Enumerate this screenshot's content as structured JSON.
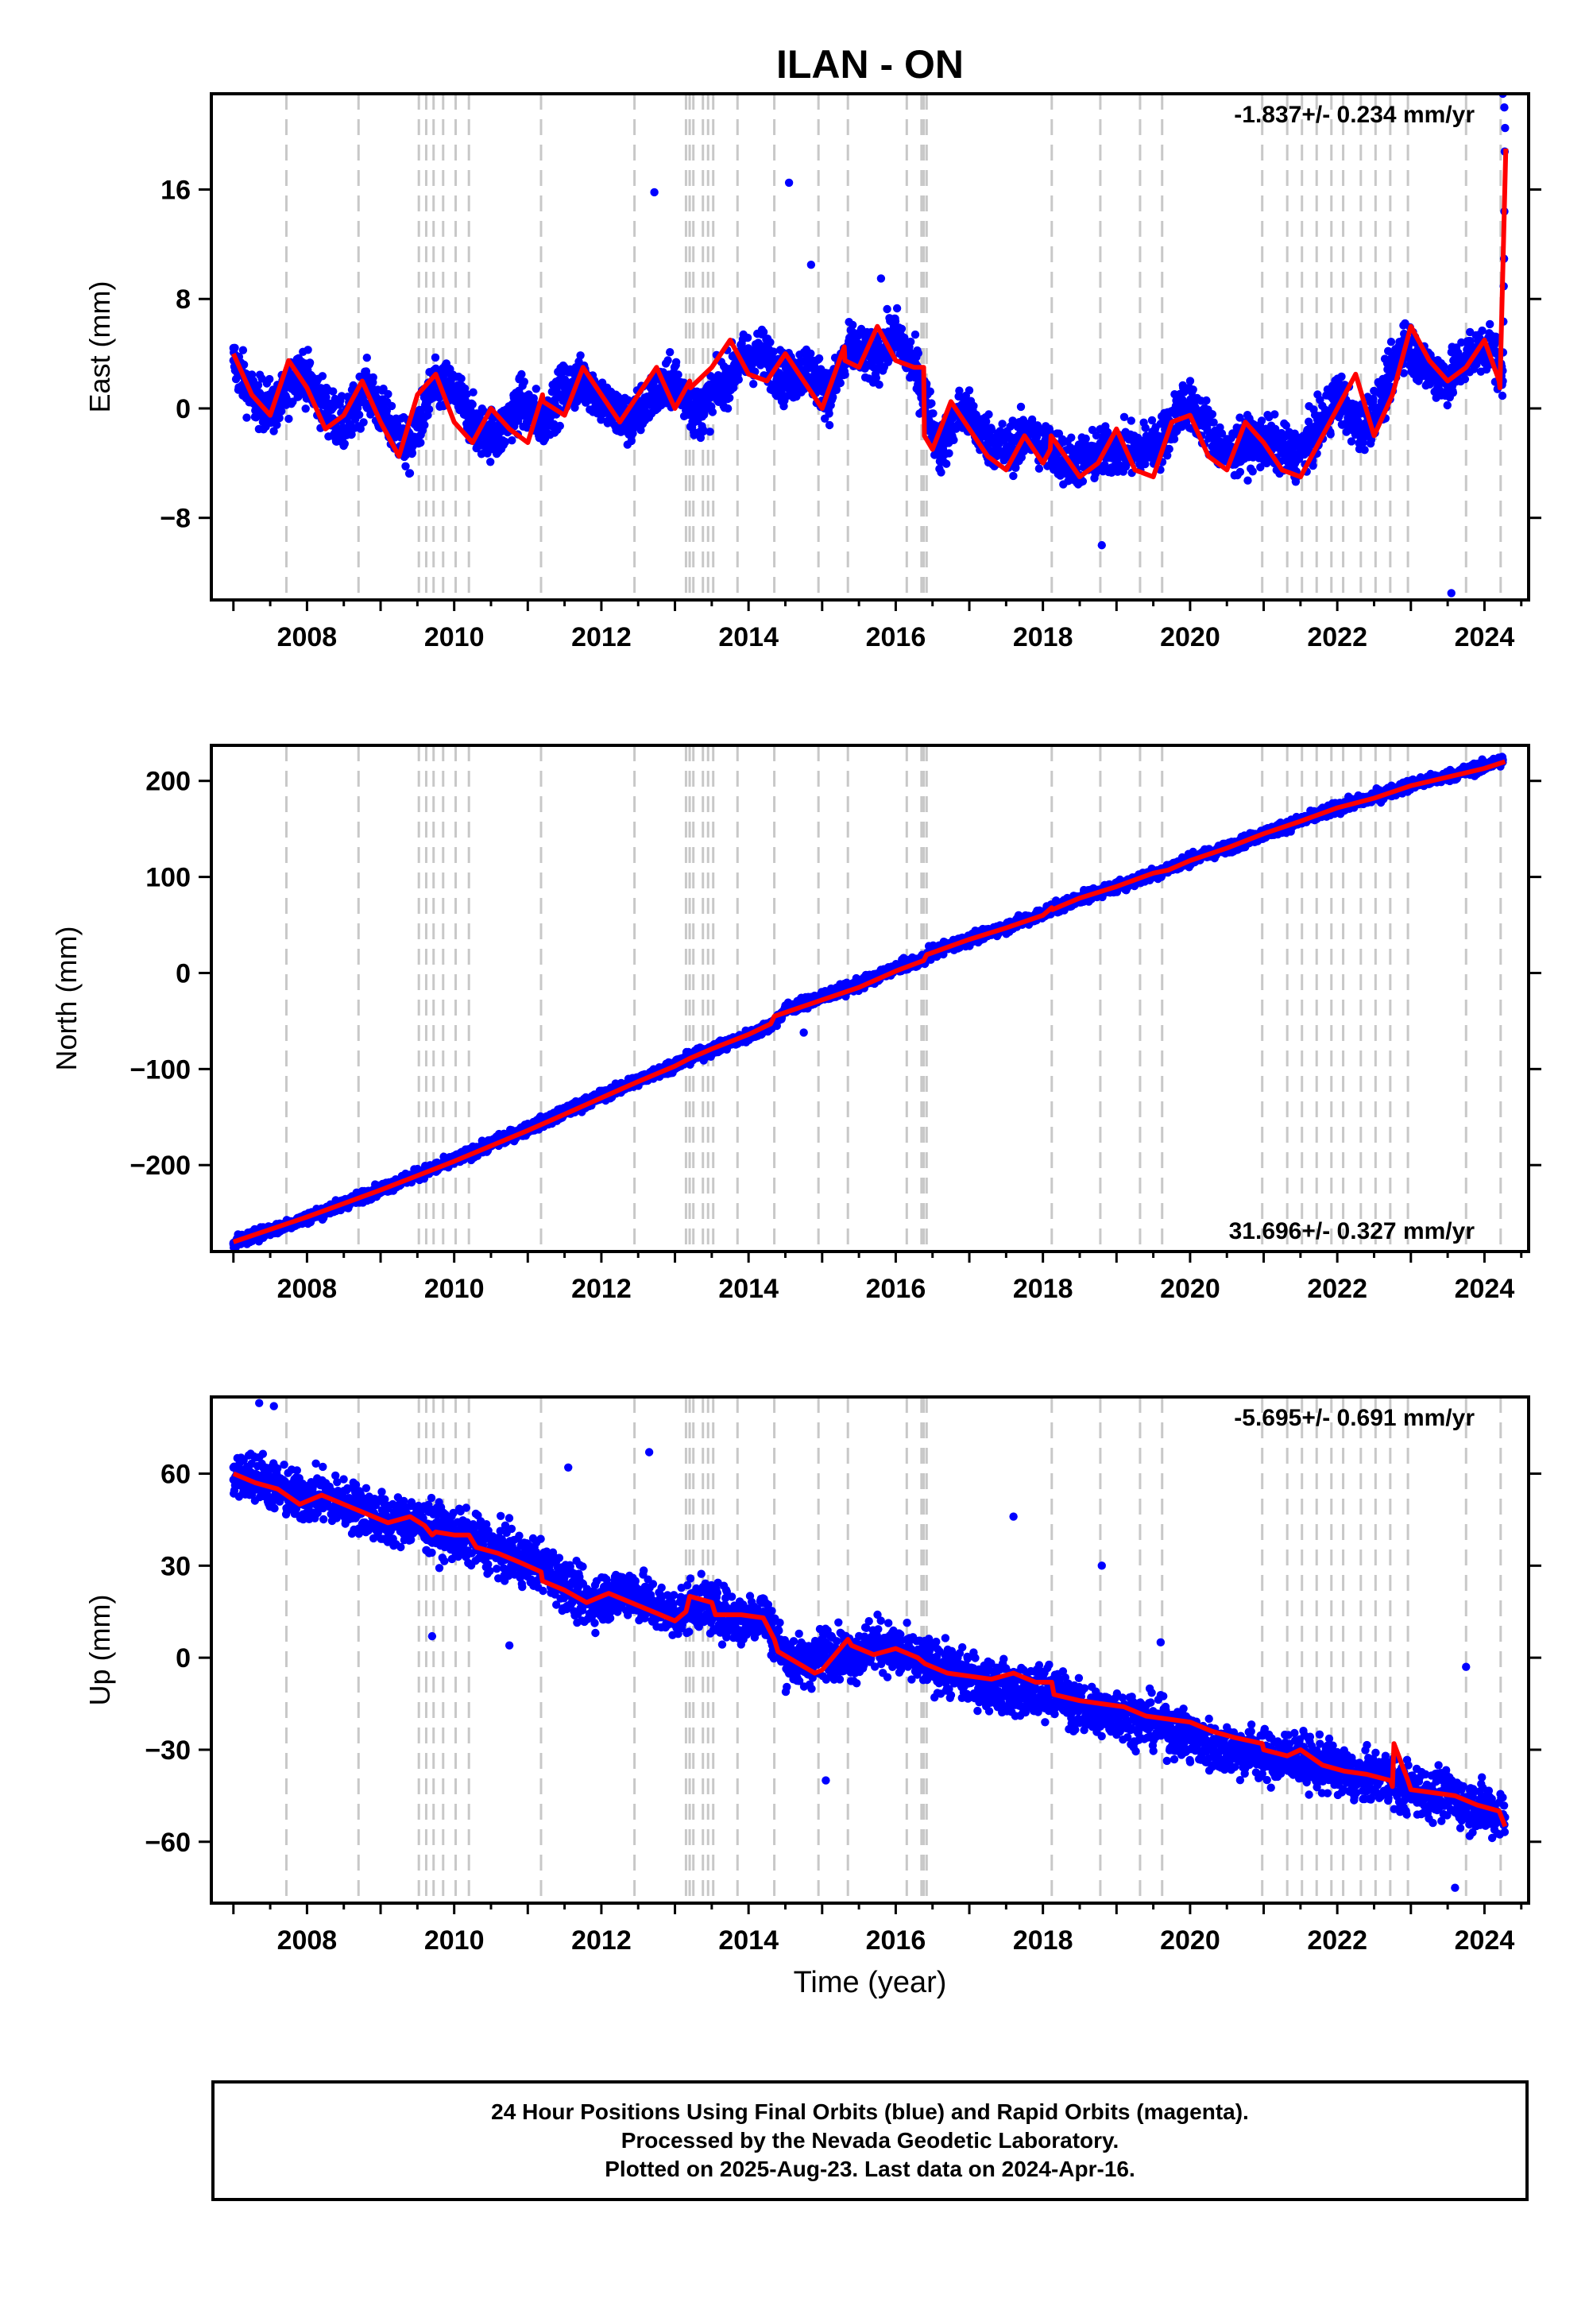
{
  "colors": {
    "points": "#0000ff",
    "trend": "#ff0000",
    "offsets": "#c8c8c8",
    "frame": "#000000",
    "background": "#ffffff"
  },
  "footer": {
    "line1": "24 Hour Positions Using Final Orbits (blue) and Rapid Orbits (magenta).",
    "line2": "Processed by the Nevada Geodetic Laboratory.",
    "line3": "Plotted on 2025-Aug-23. Last data on 2024-Apr-16."
  },
  "chart_data": [
    {
      "type": "scatter",
      "title": "ILAN - ON",
      "ylabel": "East (mm)",
      "xlabel": "",
      "rate_label": "-1.837+/- 0.234 mm/yr",
      "rate_position": "top-right",
      "xlim": [
        2006.7,
        2024.6
      ],
      "ylim": [
        -14,
        23
      ],
      "x_ticks": [
        2008,
        2010,
        2012,
        2014,
        2016,
        2018,
        2020,
        2022,
        2024
      ],
      "y_ticks": [
        -8,
        0,
        8,
        16
      ],
      "y_tick_labels": [
        "−8",
        "0",
        "8",
        "16"
      ],
      "grid": false,
      "series": [
        {
          "kind": "points",
          "x": [
            2007.0,
            2007.3,
            2007.6,
            2007.9,
            2008.2,
            2008.5,
            2008.8,
            2009.1,
            2009.4,
            2009.7,
            2010.0,
            2010.3,
            2010.6,
            2010.9,
            2011.2,
            2011.5,
            2011.8,
            2012.1,
            2012.4,
            2012.7,
            2013.0,
            2013.3,
            2013.6,
            2013.9,
            2014.2,
            2014.5,
            2014.8,
            2015.1,
            2015.4,
            2015.7,
            2016.0,
            2016.3,
            2016.6,
            2016.9,
            2017.2,
            2017.5,
            2017.8,
            2018.1,
            2018.4,
            2018.7,
            2019.0,
            2019.3,
            2019.6,
            2019.9,
            2020.2,
            2020.5,
            2020.8,
            2021.1,
            2021.4,
            2021.7,
            2022.0,
            2022.3,
            2022.6,
            2022.9,
            2023.2,
            2023.5,
            2023.8,
            2024.1,
            2024.25,
            2024.28
          ],
          "y": [
            3.5,
            0.5,
            0.0,
            3.0,
            0.5,
            -1.5,
            1.5,
            -1.0,
            -3.0,
            1.5,
            1.5,
            -1.5,
            -2.0,
            0.5,
            -1.0,
            1.5,
            2.0,
            0.0,
            -1.0,
            1.0,
            2.0,
            -0.5,
            1.5,
            3.5,
            4.0,
            2.0,
            3.0,
            1.0,
            4.5,
            3.5,
            5.5,
            2.5,
            -3.0,
            0.0,
            -2.0,
            -3.0,
            -2.0,
            -3.0,
            -4.0,
            -3.5,
            -3.0,
            -3.0,
            -2.5,
            0.5,
            -1.0,
            -3.5,
            -2.5,
            -2.5,
            -3.5,
            -2.0,
            1.0,
            -1.5,
            0.5,
            5.0,
            3.0,
            2.0,
            4.0,
            4.5,
            2.0,
            20.5
          ]
        },
        {
          "kind": "trend",
          "x": [
            2007.0,
            2007.25,
            2007.5,
            2007.75,
            2008.0,
            2008.25,
            2008.5,
            2008.75,
            2009.0,
            2009.25,
            2009.5,
            2009.75,
            2010.0,
            2010.25,
            2010.5,
            2010.75,
            2011.0,
            2011.2,
            2011.21,
            2011.5,
            2011.75,
            2012.0,
            2012.25,
            2012.5,
            2012.75,
            2013.0,
            2013.2,
            2013.21,
            2013.5,
            2013.75,
            2014.0,
            2014.25,
            2014.5,
            2014.75,
            2015.0,
            2015.3,
            2015.31,
            2015.5,
            2015.75,
            2016.0,
            2016.25,
            2016.38,
            2016.39,
            2016.5,
            2016.75,
            2017.0,
            2017.25,
            2017.5,
            2017.75,
            2018.0,
            2018.1,
            2018.11,
            2018.5,
            2018.75,
            2019.0,
            2019.25,
            2019.5,
            2019.75,
            2020.0,
            2020.25,
            2020.5,
            2020.75,
            2021.0,
            2021.25,
            2021.5,
            2021.75,
            2022.0,
            2022.25,
            2022.5,
            2022.75,
            2023.0,
            2023.25,
            2023.5,
            2023.75,
            2024.0,
            2024.2,
            2024.21,
            2024.29
          ],
          "y": [
            4.0,
            1.0,
            -0.5,
            3.5,
            1.5,
            -1.5,
            -0.5,
            2.0,
            -1.0,
            -3.5,
            1.0,
            2.5,
            -1.0,
            -2.5,
            0.0,
            -1.5,
            -2.5,
            1.0,
            0.5,
            -0.5,
            3.0,
            1.0,
            -1.0,
            1.0,
            3.0,
            0.0,
            2.0,
            1.5,
            3.0,
            5.0,
            2.5,
            2.0,
            4.0,
            2.0,
            0.0,
            4.5,
            3.5,
            3.0,
            6.0,
            3.5,
            3.0,
            3.0,
            -2.0,
            -3.0,
            0.5,
            -1.5,
            -3.5,
            -4.5,
            -2.0,
            -4.0,
            -3.0,
            -2.0,
            -5.0,
            -4.0,
            -1.5,
            -4.5,
            -5.0,
            -1.0,
            -0.5,
            -3.5,
            -4.5,
            -1.0,
            -2.5,
            -4.5,
            -5.0,
            -2.5,
            0.0,
            2.5,
            -2.0,
            1.0,
            6.0,
            3.5,
            2.0,
            3.0,
            5.0,
            2.0,
            1.5,
            19.0
          ]
        },
        {
          "kind": "outliers",
          "x": [
            2012.72,
            2014.55,
            2014.85,
            2015.8,
            2018.8,
            2023.55,
            2024.25,
            2024.27
          ],
          "y": [
            15.8,
            16.5,
            10.5,
            9.5,
            -10.0,
            -13.5,
            23.0,
            22.0
          ]
        }
      ],
      "offset_lines": [
        2007.72,
        2008.7,
        2009.52,
        2009.62,
        2009.72,
        2009.85,
        2010.02,
        2010.2,
        2011.18,
        2012.45,
        2013.15,
        2013.2,
        2013.25,
        2013.38,
        2013.45,
        2013.52,
        2013.85,
        2014.35,
        2014.95,
        2015.35,
        2016.15,
        2016.35,
        2016.38,
        2016.42,
        2018.12,
        2018.78,
        2019.32,
        2019.62,
        2020.98,
        2021.32,
        2021.52,
        2021.72,
        2021.92,
        2022.08,
        2022.32,
        2022.52,
        2022.72,
        2022.96,
        2023.75,
        2024.22
      ]
    },
    {
      "type": "scatter",
      "title": "",
      "ylabel": "North (mm)",
      "xlabel": "",
      "rate_label": "31.696+/- 0.327 mm/yr",
      "rate_position": "bottom-right",
      "xlim": [
        2006.7,
        2024.6
      ],
      "ylim": [
        -290,
        237
      ],
      "x_ticks": [
        2008,
        2010,
        2012,
        2014,
        2016,
        2018,
        2020,
        2022,
        2024
      ],
      "y_ticks": [
        -200,
        -100,
        0,
        100,
        200
      ],
      "y_tick_labels": [
        "−200",
        "−100",
        "0",
        "100",
        "200"
      ],
      "grid": false,
      "series": [
        {
          "kind": "points",
          "x": [
            2007.0,
            2007.5,
            2008.0,
            2008.5,
            2009.0,
            2009.5,
            2010.0,
            2010.5,
            2011.0,
            2011.5,
            2012.0,
            2012.5,
            2013.0,
            2013.5,
            2014.0,
            2014.3,
            2014.5,
            2015.0,
            2015.5,
            2016.0,
            2016.4,
            2016.5,
            2017.0,
            2017.5,
            2018.0,
            2018.15,
            2018.5,
            2019.0,
            2019.5,
            2020.0,
            2020.5,
            2021.0,
            2021.5,
            2022.0,
            2022.5,
            2023.0,
            2023.5,
            2024.0,
            2024.25
          ],
          "y": [
            -281,
            -268,
            -255,
            -240,
            -225,
            -210,
            -195,
            -178,
            -162,
            -145,
            -128,
            -112,
            -95,
            -80,
            -65,
            -55,
            -38,
            -25,
            -12,
            5,
            15,
            22,
            35,
            48,
            62,
            68,
            78,
            90,
            103,
            118,
            130,
            145,
            158,
            172,
            183,
            196,
            205,
            215,
            222
          ]
        },
        {
          "kind": "trend",
          "x": [
            2007.0,
            2007.5,
            2008.0,
            2008.5,
            2009.0,
            2009.5,
            2010.0,
            2010.5,
            2011.0,
            2011.5,
            2012.0,
            2012.5,
            2013.0,
            2013.2,
            2013.5,
            2014.0,
            2014.3,
            2014.35,
            2015.0,
            2015.5,
            2016.0,
            2016.38,
            2016.42,
            2017.0,
            2017.5,
            2018.0,
            2018.12,
            2018.13,
            2018.5,
            2019.0,
            2019.5,
            2019.7,
            2020.0,
            2020.5,
            2021.0,
            2021.5,
            2022.0,
            2022.5,
            2023.0,
            2023.5,
            2024.0,
            2024.28
          ],
          "y": [
            -280,
            -267,
            -254,
            -240,
            -226,
            -211,
            -196,
            -180,
            -164,
            -147,
            -130,
            -113,
            -97,
            -89,
            -79,
            -64,
            -53,
            -45,
            -28,
            -15,
            2,
            13,
            19,
            35,
            47,
            60,
            68,
            66,
            78,
            90,
            104,
            107,
            117,
            130,
            145,
            158,
            172,
            182,
            195,
            204,
            213,
            220
          ]
        },
        {
          "kind": "outliers",
          "x": [
            2014.75,
            2016.45,
            2018.2
          ],
          "y": [
            -62,
            28,
            63
          ]
        }
      ],
      "offset_lines": [
        2007.72,
        2008.7,
        2009.52,
        2009.62,
        2009.72,
        2009.85,
        2010.02,
        2010.2,
        2011.18,
        2012.45,
        2013.15,
        2013.2,
        2013.25,
        2013.38,
        2013.45,
        2013.52,
        2013.85,
        2014.35,
        2014.95,
        2015.35,
        2016.15,
        2016.35,
        2016.38,
        2016.42,
        2018.12,
        2018.78,
        2019.32,
        2019.62,
        2020.98,
        2021.32,
        2021.52,
        2021.72,
        2021.92,
        2022.08,
        2022.32,
        2022.52,
        2022.72,
        2022.96,
        2023.75,
        2024.22
      ]
    },
    {
      "type": "scatter",
      "title": "",
      "ylabel": "Up (mm)",
      "xlabel": "Time (year)",
      "rate_label": "-5.695+/- 0.691 mm/yr",
      "rate_position": "top-right",
      "xlim": [
        2006.7,
        2024.6
      ],
      "ylim": [
        -80,
        85
      ],
      "x_ticks": [
        2008,
        2010,
        2012,
        2014,
        2016,
        2018,
        2020,
        2022,
        2024
      ],
      "y_ticks": [
        -60,
        -30,
        0,
        30,
        60
      ],
      "y_tick_labels": [
        "−60",
        "−30",
        "0",
        "30",
        "60"
      ],
      "grid": false,
      "series": [
        {
          "kind": "points",
          "x": [
            2007.0,
            2007.3,
            2007.6,
            2007.9,
            2008.2,
            2008.5,
            2008.8,
            2009.1,
            2009.4,
            2009.7,
            2010.0,
            2010.3,
            2010.6,
            2010.9,
            2011.2,
            2011.5,
            2011.8,
            2012.1,
            2012.4,
            2012.7,
            2013.0,
            2013.3,
            2013.6,
            2013.9,
            2014.2,
            2014.5,
            2014.8,
            2015.1,
            2015.4,
            2015.7,
            2016.0,
            2016.3,
            2016.6,
            2016.9,
            2017.2,
            2017.5,
            2017.8,
            2018.1,
            2018.4,
            2018.7,
            2019.0,
            2019.3,
            2019.6,
            2019.9,
            2020.2,
            2020.5,
            2020.8,
            2021.1,
            2021.4,
            2021.7,
            2022.0,
            2022.3,
            2022.6,
            2022.9,
            2023.2,
            2023.5,
            2023.8,
            2024.1,
            2024.28
          ],
          "y": [
            58,
            60,
            55,
            52,
            53,
            50,
            48,
            44,
            45,
            42,
            40,
            38,
            35,
            32,
            30,
            24,
            18,
            20,
            22,
            17,
            14,
            18,
            15,
            12,
            15,
            0,
            -2,
            3,
            0,
            5,
            2,
            -1,
            -3,
            -6,
            -8,
            -10,
            -12,
            -10,
            -15,
            -18,
            -18,
            -20,
            -22,
            -25,
            -28,
            -30,
            -30,
            -33,
            -32,
            -35,
            -36,
            -40,
            -38,
            -42,
            -44,
            -45,
            -48,
            -50,
            -52
          ]
        },
        {
          "kind": "trend",
          "x": [
            2007.0,
            2007.3,
            2007.6,
            2007.9,
            2008.2,
            2008.5,
            2008.8,
            2009.1,
            2009.4,
            2009.6,
            2009.7,
            2009.75,
            2010.0,
            2010.2,
            2010.3,
            2010.6,
            2010.9,
            2011.18,
            2011.2,
            2011.5,
            2011.8,
            2012.1,
            2012.4,
            2012.7,
            2013.0,
            2013.15,
            2013.2,
            2013.5,
            2013.55,
            2013.9,
            2014.2,
            2014.35,
            2014.4,
            2014.9,
            2015.0,
            2015.35,
            2015.4,
            2015.7,
            2016.0,
            2016.3,
            2016.4,
            2016.7,
            2017.0,
            2017.3,
            2017.6,
            2017.9,
            2018.12,
            2018.15,
            2018.5,
            2018.8,
            2019.1,
            2019.4,
            2019.7,
            2020.0,
            2020.3,
            2020.6,
            2020.98,
            2021.0,
            2021.32,
            2021.5,
            2021.8,
            2022.1,
            2022.4,
            2022.72,
            2022.75,
            2022.77,
            2022.96,
            2023.0,
            2023.3,
            2023.6,
            2023.9,
            2024.2,
            2024.28
          ],
          "y": [
            60,
            57,
            55,
            50,
            53,
            50,
            47,
            44,
            46,
            43,
            40,
            41,
            40,
            40,
            36,
            34,
            31,
            28,
            25,
            22,
            18,
            21,
            18,
            15,
            12,
            15,
            20,
            18,
            14,
            14,
            13,
            6,
            2,
            -5,
            -4,
            6,
            4,
            1,
            3,
            0,
            -2,
            -5,
            -6,
            -7,
            -5,
            -8,
            -8,
            -12,
            -14,
            -15,
            -16,
            -19,
            -20,
            -21,
            -24,
            -26,
            -28,
            -30,
            -32,
            -30,
            -35,
            -37,
            -38,
            -40,
            -42,
            -28,
            -40,
            -43,
            -44,
            -45,
            -48,
            -50,
            -55
          ]
        },
        {
          "kind": "outliers",
          "x": [
            2007.35,
            2007.55,
            2009.7,
            2010.75,
            2011.55,
            2012.65,
            2015.05,
            2017.6,
            2018.8,
            2019.6,
            2023.6,
            2023.75
          ],
          "y": [
            83,
            82,
            7,
            4,
            62,
            67,
            -40,
            46,
            30,
            5,
            -75,
            -3
          ]
        }
      ],
      "offset_lines": [
        2007.72,
        2008.7,
        2009.52,
        2009.62,
        2009.72,
        2009.85,
        2010.02,
        2010.2,
        2011.18,
        2012.45,
        2013.15,
        2013.2,
        2013.25,
        2013.38,
        2013.45,
        2013.52,
        2013.85,
        2014.35,
        2014.95,
        2015.35,
        2016.15,
        2016.35,
        2016.38,
        2016.42,
        2018.12,
        2018.78,
        2019.32,
        2019.62,
        2020.98,
        2021.32,
        2021.52,
        2021.72,
        2021.92,
        2022.08,
        2022.32,
        2022.52,
        2022.72,
        2022.96,
        2023.75,
        2024.22
      ]
    }
  ]
}
